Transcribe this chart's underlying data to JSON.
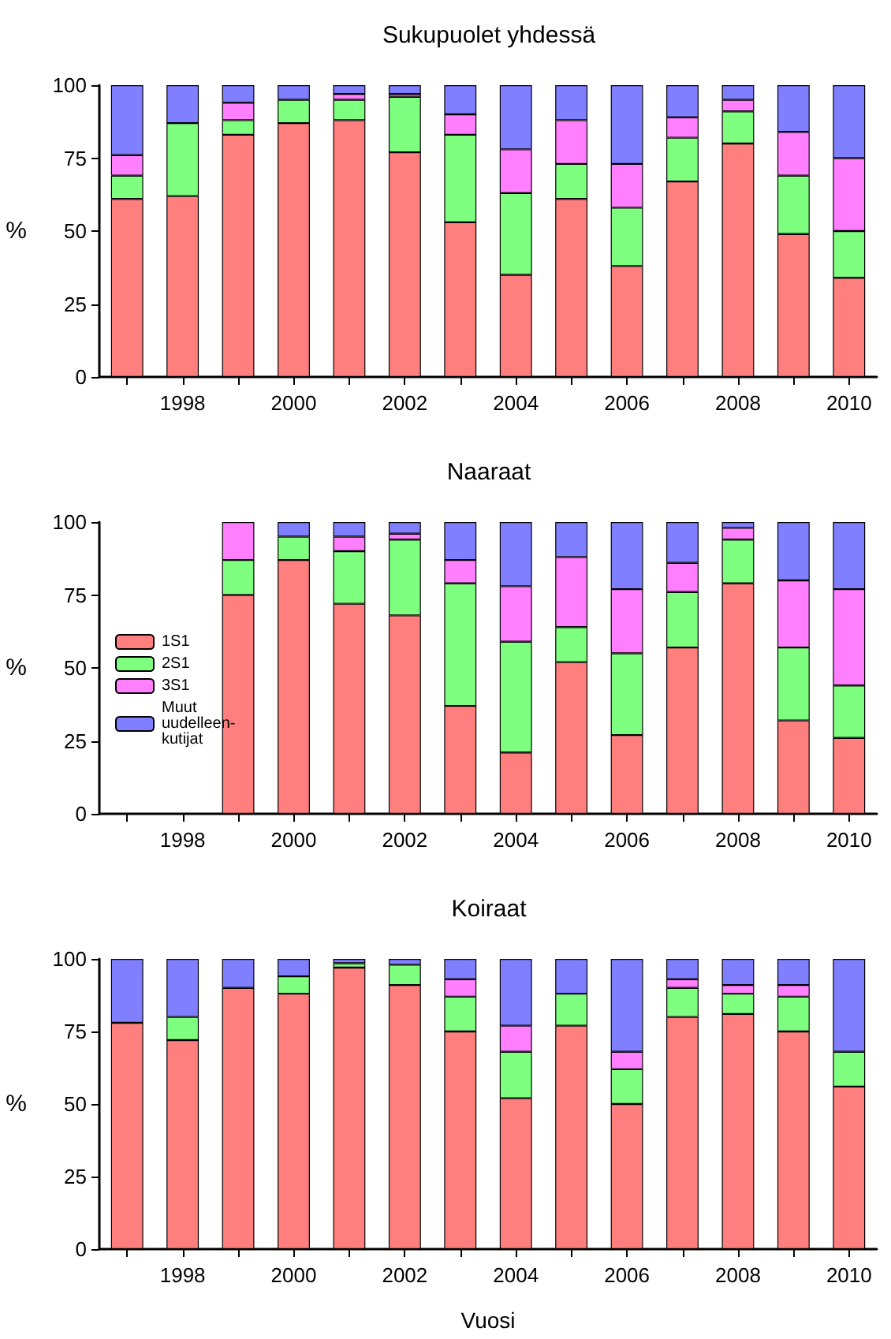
{
  "chart_data": [
    {
      "type": "bar",
      "title": "Sukupuolet yhdessä",
      "ylabel": "%",
      "stacked": true,
      "categories": [
        null,
        "1998",
        null,
        "2000",
        null,
        "2002",
        null,
        "2004",
        null,
        "2006",
        null,
        "2008",
        null,
        "2010"
      ],
      "ylim": [
        0,
        100
      ],
      "yticks": [
        0,
        25,
        50,
        75,
        100
      ],
      "grid": false,
      "legend": false,
      "series": [
        {
          "color": "#ff7f7f",
          "values": [
            61,
            62,
            83,
            87,
            88,
            77,
            53,
            35,
            61,
            38,
            67,
            80,
            49,
            34
          ]
        },
        {
          "color": "#7fff7f",
          "values": [
            8,
            25,
            5,
            8,
            7,
            19,
            30,
            28,
            12,
            20,
            15,
            11,
            20,
            16
          ]
        },
        {
          "color": "#ff7fff",
          "values": [
            7,
            null,
            6,
            null,
            2,
            1,
            7,
            15,
            15,
            15,
            7,
            4,
            15,
            25
          ]
        },
        {
          "color": "#7f7fff",
          "values": [
            24,
            13,
            6,
            5,
            3,
            3,
            10,
            22,
            12,
            27,
            11,
            5,
            16,
            25
          ]
        }
      ]
    },
    {
      "type": "bar",
      "title": "Naaraat",
      "ylabel": "%",
      "stacked": true,
      "categories": [
        null,
        "1998",
        null,
        "2000",
        null,
        "2002",
        null,
        "2004",
        null,
        "2006",
        null,
        "2008",
        null,
        "2010"
      ],
      "ylim": [
        0,
        100
      ],
      "yticks": [
        0,
        25,
        50,
        75,
        100
      ],
      "grid": false,
      "legend": "left",
      "series": [
        {
          "name": "1S1",
          "color": "#ff7f7f",
          "values": [
            null,
            null,
            75,
            87,
            72,
            68,
            37,
            21,
            52,
            27,
            57,
            79,
            32,
            26
          ]
        },
        {
          "name": "2S1",
          "color": "#7fff7f",
          "values": [
            null,
            null,
            12,
            8,
            18,
            26,
            42,
            38,
            12,
            28,
            19,
            15,
            25,
            18
          ]
        },
        {
          "name": "3S1",
          "color": "#ff7fff",
          "values": [
            null,
            null,
            13,
            null,
            5,
            2,
            8,
            19,
            24,
            22,
            10,
            4,
            23,
            33
          ]
        },
        {
          "name": "Muut uudelleen-kutijat",
          "color": "#7f7fff",
          "values": [
            null,
            null,
            null,
            5,
            5,
            4,
            13,
            22,
            12,
            23,
            14,
            2,
            20,
            23
          ]
        }
      ]
    },
    {
      "type": "bar",
      "title": "Koiraat",
      "ylabel": "%",
      "xlabel": "Vuosi",
      "stacked": true,
      "categories": [
        null,
        "1998",
        null,
        "2000",
        null,
        "2002",
        null,
        "2004",
        null,
        "2006",
        null,
        "2008",
        null,
        "2010"
      ],
      "ylim": [
        0,
        100
      ],
      "yticks": [
        0,
        25,
        50,
        75,
        100
      ],
      "grid": false,
      "legend": false,
      "series": [
        {
          "color": "#ff7f7f",
          "values": [
            78,
            72,
            90,
            88,
            97,
            91,
            75,
            52,
            77,
            50,
            80,
            81,
            75,
            56
          ]
        },
        {
          "color": "#7fff7f",
          "values": [
            null,
            8,
            null,
            6,
            1.5,
            7,
            12,
            16,
            11,
            12,
            10,
            7,
            12,
            12
          ]
        },
        {
          "color": "#ff7fff",
          "values": [
            null,
            null,
            null,
            null,
            null,
            null,
            6,
            9,
            null,
            6,
            3,
            3,
            4,
            null
          ]
        },
        {
          "color": "#7f7fff",
          "values": [
            22,
            20,
            10,
            6,
            1.5,
            2,
            7,
            23,
            12,
            32,
            7,
            9,
            9,
            32
          ]
        }
      ]
    }
  ]
}
